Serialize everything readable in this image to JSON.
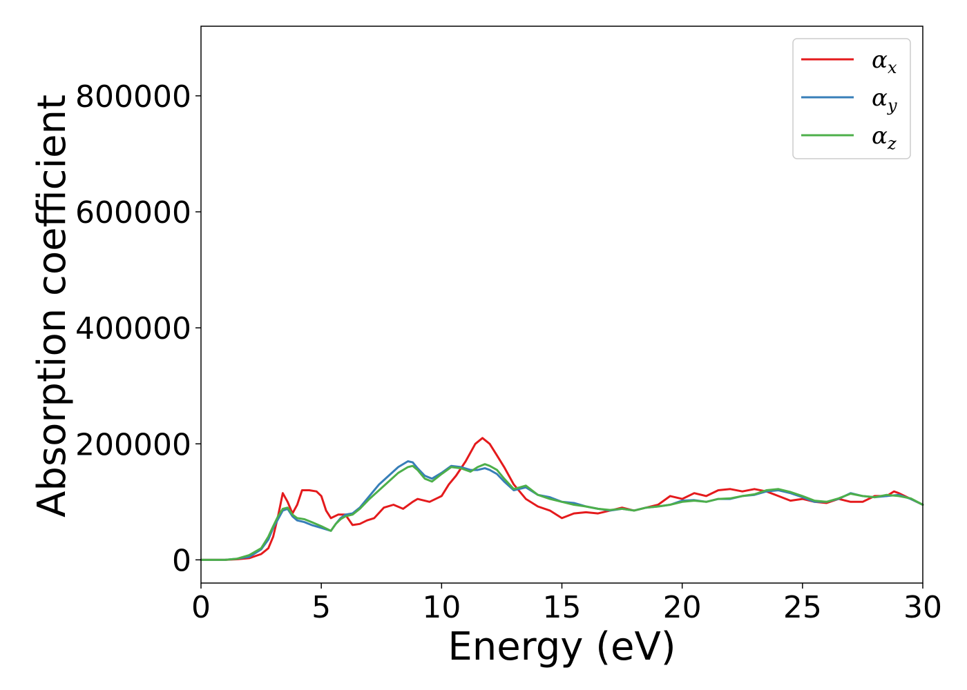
{
  "chart_data": {
    "type": "line",
    "xlabel": "Energy (eV)",
    "ylabel": "Absorption coefficient",
    "xlim": [
      0,
      30
    ],
    "ylim": [
      -40000,
      920000
    ],
    "xticks": [
      0,
      5,
      10,
      15,
      20,
      25,
      30
    ],
    "yticks": [
      0,
      200000,
      400000,
      600000,
      800000
    ],
    "grid": false,
    "legend_position": "top-right",
    "series": [
      {
        "name": "αx",
        "name_base": "α",
        "name_sub": "x",
        "color": "#e41a1c",
        "x": [
          0,
          1,
          1.5,
          2,
          2.5,
          2.8,
          3.0,
          3.2,
          3.4,
          3.6,
          3.8,
          4.0,
          4.2,
          4.5,
          4.8,
          5.0,
          5.2,
          5.4,
          5.7,
          6.0,
          6.3,
          6.6,
          6.9,
          7.2,
          7.6,
          8.0,
          8.4,
          8.8,
          9.0,
          9.5,
          10.0,
          10.3,
          10.6,
          11.0,
          11.4,
          11.7,
          12.0,
          12.3,
          12.6,
          13.0,
          13.5,
          14.0,
          14.5,
          15.0,
          15.5,
          16.0,
          16.5,
          17.0,
          17.5,
          18.0,
          18.5,
          19.0,
          19.5,
          20.0,
          20.5,
          21.0,
          21.5,
          22.0,
          22.5,
          23.0,
          23.5,
          24.0,
          24.5,
          25.0,
          25.5,
          26.0,
          26.5,
          27.0,
          27.5,
          28.0,
          28.5,
          28.8,
          29.0,
          29.5,
          30.0
        ],
        "y": [
          0,
          0,
          1000,
          3000,
          10000,
          20000,
          40000,
          75000,
          115000,
          100000,
          80000,
          95000,
          120000,
          120000,
          118000,
          110000,
          85000,
          72000,
          78000,
          78000,
          60000,
          62000,
          68000,
          72000,
          90000,
          95000,
          88000,
          100000,
          105000,
          100000,
          110000,
          130000,
          145000,
          170000,
          200000,
          210000,
          200000,
          180000,
          160000,
          130000,
          105000,
          92000,
          85000,
          72000,
          80000,
          82000,
          80000,
          85000,
          90000,
          85000,
          90000,
          95000,
          110000,
          105000,
          115000,
          110000,
          120000,
          122000,
          118000,
          122000,
          118000,
          110000,
          102000,
          105000,
          100000,
          98000,
          105000,
          100000,
          100000,
          110000,
          110000,
          118000,
          115000,
          105000,
          95000
        ]
      },
      {
        "name": "αy",
        "name_base": "α",
        "name_sub": "y",
        "color": "#377eb8",
        "x": [
          0,
          1,
          1.5,
          2,
          2.5,
          2.8,
          3.0,
          3.2,
          3.4,
          3.6,
          3.8,
          4.0,
          4.3,
          4.6,
          5.0,
          5.4,
          5.6,
          5.8,
          6.0,
          6.3,
          6.6,
          7.0,
          7.4,
          7.8,
          8.2,
          8.6,
          8.8,
          9.0,
          9.3,
          9.6,
          10.0,
          10.4,
          10.8,
          11.2,
          11.5,
          11.8,
          12.0,
          12.3,
          12.6,
          13.0,
          13.5,
          14.0,
          14.5,
          15.0,
          15.5,
          16.0,
          16.5,
          17.0,
          17.5,
          18.0,
          18.5,
          19.0,
          19.5,
          20.0,
          20.5,
          21.0,
          21.5,
          22.0,
          22.5,
          23.0,
          23.5,
          24.0,
          24.5,
          25.0,
          25.5,
          26.0,
          26.5,
          27.0,
          27.5,
          28.0,
          28.5,
          29.0,
          29.5,
          30.0
        ],
        "y": [
          0,
          0,
          2000,
          5000,
          18000,
          35000,
          55000,
          70000,
          85000,
          88000,
          75000,
          68000,
          65000,
          60000,
          55000,
          50000,
          62000,
          72000,
          78000,
          80000,
          90000,
          110000,
          130000,
          145000,
          160000,
          170000,
          168000,
          158000,
          145000,
          140000,
          150000,
          162000,
          160000,
          155000,
          155000,
          158000,
          155000,
          148000,
          135000,
          120000,
          125000,
          112000,
          108000,
          100000,
          98000,
          92000,
          88000,
          85000,
          88000,
          85000,
          90000,
          92000,
          95000,
          102000,
          103000,
          100000,
          105000,
          105000,
          110000,
          112000,
          118000,
          120000,
          115000,
          108000,
          100000,
          100000,
          105000,
          115000,
          110000,
          108000,
          110000,
          112000,
          105000,
          95000
        ]
      },
      {
        "name": "αz",
        "name_base": "α",
        "name_sub": "z",
        "color": "#4daf4a",
        "x": [
          0,
          1,
          1.5,
          2,
          2.5,
          2.8,
          3.0,
          3.2,
          3.4,
          3.6,
          3.8,
          4.0,
          4.3,
          4.6,
          5.0,
          5.4,
          5.6,
          5.8,
          6.0,
          6.3,
          6.6,
          7.0,
          7.4,
          7.8,
          8.2,
          8.6,
          8.8,
          9.0,
          9.3,
          9.6,
          10.0,
          10.4,
          10.8,
          11.2,
          11.5,
          11.8,
          12.0,
          12.3,
          12.6,
          13.0,
          13.5,
          14.0,
          14.5,
          15.0,
          15.5,
          16.0,
          16.5,
          17.0,
          17.5,
          18.0,
          18.5,
          19.0,
          19.5,
          20.0,
          20.5,
          21.0,
          21.5,
          22.0,
          22.5,
          23.0,
          23.5,
          24.0,
          24.5,
          25.0,
          25.5,
          26.0,
          26.5,
          27.0,
          27.5,
          28.0,
          28.5,
          29.0,
          29.5,
          30.0
        ],
        "y": [
          0,
          0,
          2000,
          8000,
          20000,
          40000,
          58000,
          75000,
          88000,
          90000,
          78000,
          72000,
          70000,
          65000,
          58000,
          50000,
          62000,
          70000,
          75000,
          78000,
          88000,
          105000,
          120000,
          135000,
          150000,
          160000,
          162000,
          155000,
          140000,
          135000,
          148000,
          160000,
          158000,
          152000,
          160000,
          165000,
          162000,
          155000,
          140000,
          122000,
          128000,
          112000,
          105000,
          100000,
          95000,
          92000,
          88000,
          86000,
          88000,
          85000,
          90000,
          92000,
          95000,
          100000,
          102000,
          100000,
          105000,
          106000,
          110000,
          113000,
          120000,
          122000,
          117000,
          110000,
          102000,
          100000,
          106000,
          114000,
          110000,
          108000,
          112000,
          110000,
          106000,
          95000
        ]
      }
    ]
  }
}
